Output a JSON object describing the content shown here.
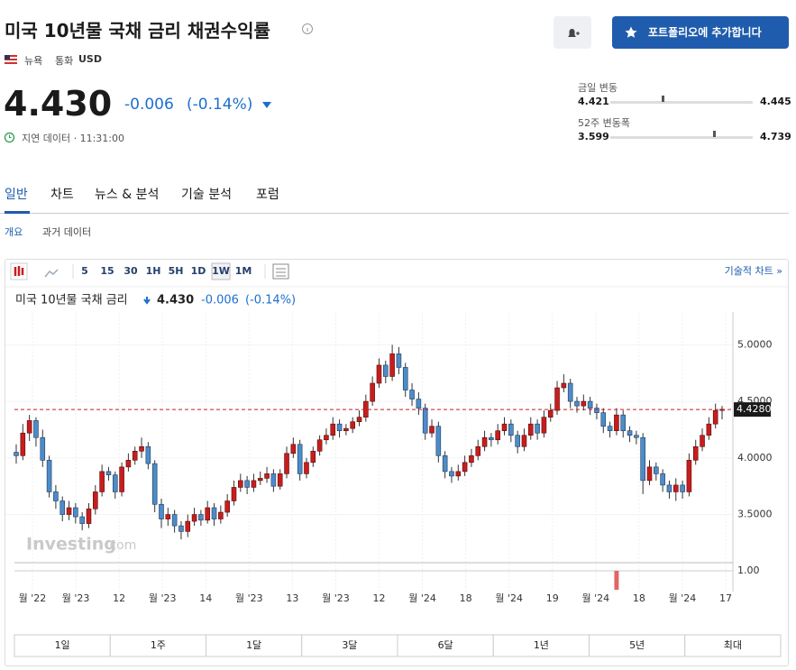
{
  "header": {
    "title": "미국 10년물 국채 금리 채권수익률",
    "exchange": "뉴욕",
    "currency_label": "통화",
    "currency": "USD",
    "price": "4.430",
    "change": "-0.006",
    "change_pct": "(-0.14%)",
    "delay": "지연 데이터 · 11:31:00",
    "button": "포트폴리오에 추가합니다"
  },
  "ranges": {
    "day": {
      "label": "금일 변동",
      "low": "4.421",
      "high": "4.445"
    },
    "week52": {
      "label": "52주 변동폭",
      "low": "3.599",
      "high": "4.739"
    }
  },
  "tabs": [
    "일반",
    "차트",
    "뉴스 & 분석",
    "기술 분석",
    "포럼"
  ],
  "subtabs": [
    "개요",
    "과거 데이터"
  ],
  "toolbar": {
    "intervals": [
      "5",
      "15",
      "30",
      "1H",
      "5H",
      "1D",
      "1W",
      "1M"
    ],
    "link": "기술적 차트 »"
  },
  "legend": {
    "name": "미국 10년물 국채 금리",
    "price": "4.430",
    "change": "-0.006",
    "change_pct": "(-0.14%)"
  },
  "watermark": {
    "brand": "Investing",
    "suffix": ".com"
  },
  "range_buttons": [
    "1일",
    "1주",
    "1달",
    "3달",
    "6달",
    "1년",
    "5년",
    "최대"
  ],
  "chart_data": {
    "type": "candlestick",
    "up_color": "#c81d1d",
    "down_color": "#4d8cc8",
    "ylim": [
      3.09,
      5.21
    ],
    "yticks": [
      {
        "value": 3.5,
        "label": "3.5000"
      },
      {
        "value": 4,
        "label": "4.0000"
      },
      {
        "value": 4.5,
        "label": "4.5000"
      },
      {
        "value": 5,
        "label": "5.0000"
      }
    ],
    "last_price": {
      "value": 4.428,
      "label": "4.4280"
    },
    "x_tick_labels": [
      "월 '22",
      "월 '23",
      "12",
      "월 '23",
      "14",
      "월 '23",
      "13",
      "월 '23",
      "12",
      "월 '24",
      "18",
      "월 '24",
      "19",
      "월 '24",
      "18",
      "월 '24",
      "17"
    ],
    "ohlc": [
      [
        4.05,
        4.12,
        3.95,
        4.02
      ],
      [
        4.02,
        4.3,
        3.98,
        4.22
      ],
      [
        4.22,
        4.38,
        4.15,
        4.33
      ],
      [
        4.33,
        4.36,
        4.1,
        4.18
      ],
      [
        4.18,
        4.25,
        3.92,
        3.98
      ],
      [
        3.98,
        4.02,
        3.65,
        3.7
      ],
      [
        3.7,
        3.76,
        3.55,
        3.62
      ],
      [
        3.62,
        3.66,
        3.44,
        3.5
      ],
      [
        3.5,
        3.62,
        3.45,
        3.56
      ],
      [
        3.56,
        3.6,
        3.42,
        3.48
      ],
      [
        3.48,
        3.52,
        3.36,
        3.42
      ],
      [
        3.42,
        3.6,
        3.38,
        3.55
      ],
      [
        3.55,
        3.76,
        3.5,
        3.7
      ],
      [
        3.7,
        3.94,
        3.66,
        3.88
      ],
      [
        3.88,
        3.92,
        3.8,
        3.85
      ],
      [
        3.85,
        3.88,
        3.64,
        3.7
      ],
      [
        3.7,
        3.96,
        3.66,
        3.92
      ],
      [
        3.92,
        4.04,
        3.88,
        3.98
      ],
      [
        3.98,
        4.1,
        3.94,
        4.06
      ],
      [
        4.06,
        4.18,
        4.0,
        4.1
      ],
      [
        4.1,
        4.14,
        3.9,
        3.95
      ],
      [
        3.95,
        3.98,
        3.52,
        3.59
      ],
      [
        3.59,
        3.64,
        3.38,
        3.46
      ],
      [
        3.46,
        3.56,
        3.4,
        3.5
      ],
      [
        3.5,
        3.54,
        3.34,
        3.4
      ],
      [
        3.4,
        3.44,
        3.28,
        3.35
      ],
      [
        3.35,
        3.5,
        3.3,
        3.44
      ],
      [
        3.44,
        3.56,
        3.4,
        3.5
      ],
      [
        3.5,
        3.54,
        3.4,
        3.45
      ],
      [
        3.45,
        3.62,
        3.42,
        3.56
      ],
      [
        3.56,
        3.6,
        3.4,
        3.46
      ],
      [
        3.46,
        3.58,
        3.42,
        3.52
      ],
      [
        3.52,
        3.68,
        3.48,
        3.62
      ],
      [
        3.62,
        3.8,
        3.58,
        3.74
      ],
      [
        3.74,
        3.86,
        3.7,
        3.8
      ],
      [
        3.8,
        3.84,
        3.68,
        3.74
      ],
      [
        3.74,
        3.86,
        3.7,
        3.8
      ],
      [
        3.8,
        3.88,
        3.76,
        3.82
      ],
      [
        3.82,
        3.92,
        3.78,
        3.86
      ],
      [
        3.86,
        3.9,
        3.7,
        3.75
      ],
      [
        3.75,
        3.9,
        3.72,
        3.86
      ],
      [
        3.86,
        4.1,
        3.82,
        4.04
      ],
      [
        4.04,
        4.18,
        4.0,
        4.12
      ],
      [
        4.12,
        4.16,
        3.8,
        3.86
      ],
      [
        3.86,
        4.0,
        3.82,
        3.96
      ],
      [
        3.96,
        4.1,
        3.92,
        4.06
      ],
      [
        4.06,
        4.2,
        4.02,
        4.16
      ],
      [
        4.16,
        4.26,
        4.12,
        4.2
      ],
      [
        4.2,
        4.36,
        4.16,
        4.3
      ],
      [
        4.3,
        4.34,
        4.18,
        4.24
      ],
      [
        4.24,
        4.3,
        4.2,
        4.26
      ],
      [
        4.26,
        4.36,
        4.22,
        4.32
      ],
      [
        4.32,
        4.42,
        4.28,
        4.36
      ],
      [
        4.36,
        4.56,
        4.32,
        4.5
      ],
      [
        4.5,
        4.72,
        4.46,
        4.66
      ],
      [
        4.66,
        4.88,
        4.62,
        4.82
      ],
      [
        4.82,
        4.86,
        4.66,
        4.72
      ],
      [
        4.72,
        5.0,
        4.68,
        4.92
      ],
      [
        4.92,
        4.98,
        4.74,
        4.8
      ],
      [
        4.8,
        4.84,
        4.54,
        4.6
      ],
      [
        4.6,
        4.66,
        4.46,
        4.52
      ],
      [
        4.52,
        4.58,
        4.38,
        4.44
      ],
      [
        4.44,
        4.48,
        4.16,
        4.22
      ],
      [
        4.22,
        4.34,
        4.18,
        4.28
      ],
      [
        4.28,
        4.32,
        3.96,
        4.02
      ],
      [
        4.02,
        4.06,
        3.82,
        3.88
      ],
      [
        3.88,
        3.92,
        3.78,
        3.84
      ],
      [
        3.84,
        3.94,
        3.8,
        3.88
      ],
      [
        3.88,
        4.02,
        3.84,
        3.96
      ],
      [
        3.96,
        4.08,
        3.92,
        4.02
      ],
      [
        4.02,
        4.16,
        3.98,
        4.1
      ],
      [
        4.1,
        4.24,
        4.06,
        4.18
      ],
      [
        4.18,
        4.22,
        4.1,
        4.16
      ],
      [
        4.16,
        4.3,
        4.12,
        4.24
      ],
      [
        4.24,
        4.36,
        4.2,
        4.3
      ],
      [
        4.3,
        4.34,
        4.14,
        4.2
      ],
      [
        4.2,
        4.24,
        4.04,
        4.1
      ],
      [
        4.1,
        4.26,
        4.06,
        4.2
      ],
      [
        4.2,
        4.36,
        4.16,
        4.3
      ],
      [
        4.3,
        4.34,
        4.16,
        4.22
      ],
      [
        4.22,
        4.42,
        4.18,
        4.36
      ],
      [
        4.36,
        4.48,
        4.32,
        4.42
      ],
      [
        4.42,
        4.68,
        4.38,
        4.62
      ],
      [
        4.62,
        4.74,
        4.58,
        4.66
      ],
      [
        4.66,
        4.7,
        4.44,
        4.5
      ],
      [
        4.5,
        4.54,
        4.4,
        4.46
      ],
      [
        4.46,
        4.56,
        4.42,
        4.5
      ],
      [
        4.5,
        4.54,
        4.38,
        4.44
      ],
      [
        4.44,
        4.48,
        4.34,
        4.4
      ],
      [
        4.4,
        4.44,
        4.22,
        4.28
      ],
      [
        4.28,
        4.32,
        4.18,
        4.24
      ],
      [
        4.24,
        4.44,
        4.2,
        4.38
      ],
      [
        4.38,
        4.42,
        4.18,
        4.24
      ],
      [
        4.24,
        4.28,
        4.14,
        4.2
      ],
      [
        4.2,
        4.24,
        4.12,
        4.18
      ],
      [
        4.18,
        4.22,
        3.68,
        3.8
      ],
      [
        3.8,
        3.98,
        3.76,
        3.92
      ],
      [
        3.92,
        3.96,
        3.8,
        3.86
      ],
      [
        3.86,
        3.9,
        3.7,
        3.76
      ],
      [
        3.76,
        3.8,
        3.64,
        3.7
      ],
      [
        3.7,
        3.82,
        3.62,
        3.76
      ],
      [
        3.76,
        3.8,
        3.64,
        3.7
      ],
      [
        3.7,
        4.04,
        3.66,
        3.98
      ],
      [
        3.98,
        4.16,
        3.94,
        4.1
      ],
      [
        4.1,
        4.26,
        4.06,
        4.2
      ],
      [
        4.2,
        4.36,
        4.16,
        4.3
      ],
      [
        4.3,
        4.48,
        4.26,
        4.42
      ],
      [
        4.42,
        4.46,
        4.34,
        4.43
      ]
    ],
    "volume_color": "#e06666",
    "volume_ylim": [
      0,
      1
    ],
    "volume_yticks": [
      {
        "value": 1,
        "label": "1.00"
      }
    ],
    "volume": [
      null,
      null,
      null,
      null,
      null,
      null,
      null,
      null,
      null,
      null,
      null,
      null,
      null,
      null,
      null,
      null,
      null,
      null,
      null,
      null,
      null,
      null,
      null,
      null,
      null,
      null,
      null,
      null,
      null,
      null,
      null,
      null,
      null,
      null,
      null,
      null,
      null,
      null,
      null,
      null,
      null,
      null,
      null,
      null,
      null,
      null,
      null,
      null,
      null,
      null,
      null,
      null,
      null,
      null,
      null,
      null,
      null,
      null,
      null,
      null,
      null,
      null,
      null,
      null,
      null,
      null,
      null,
      null,
      null,
      null,
      null,
      null,
      null,
      null,
      null,
      null,
      null,
      null,
      null,
      null,
      null,
      null,
      null,
      null,
      null,
      null,
      null,
      null,
      null,
      null,
      null,
      1,
      null,
      null,
      null,
      null,
      null,
      null,
      null,
      null,
      null,
      null,
      null,
      null,
      null,
      null,
      null
    ]
  }
}
